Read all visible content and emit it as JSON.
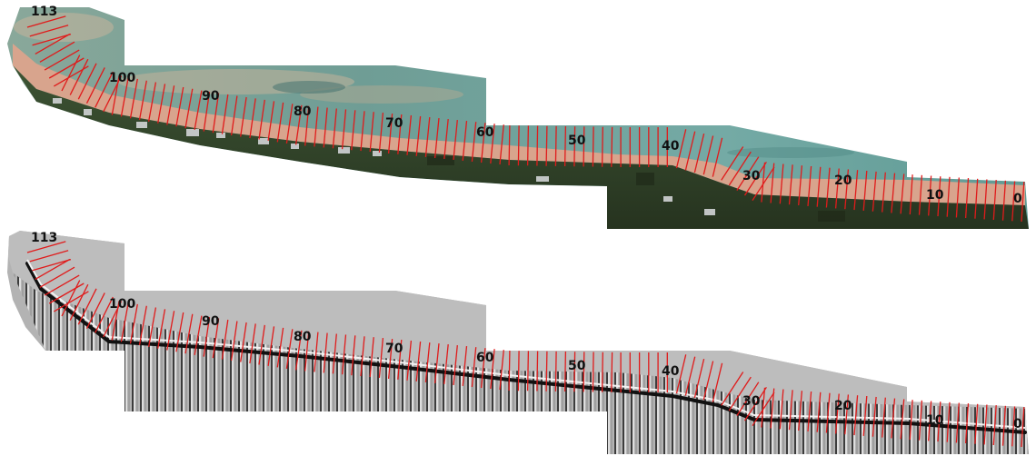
{
  "figure": {
    "panels": [
      {
        "id": "orthophoto",
        "kind": "aerial-orthomosaic",
        "colors": {
          "sand": "#d9a98f",
          "water": "#6aa29a",
          "vegetation": "#3f5536",
          "roofs": "#c9ccd0"
        }
      },
      {
        "id": "hillshade",
        "kind": "elevation-hillshade",
        "colors": {
          "background": "#b3b3b3",
          "light": "#ededed",
          "shadow": "#1e1e1e"
        }
      }
    ],
    "transects": {
      "first": 0,
      "last": 113,
      "step_label": 10,
      "line_color": "#e01b1b",
      "labels": [
        "0",
        "10",
        "20",
        "30",
        "40",
        "50",
        "60",
        "70",
        "80",
        "90",
        "100",
        "113"
      ]
    }
  }
}
